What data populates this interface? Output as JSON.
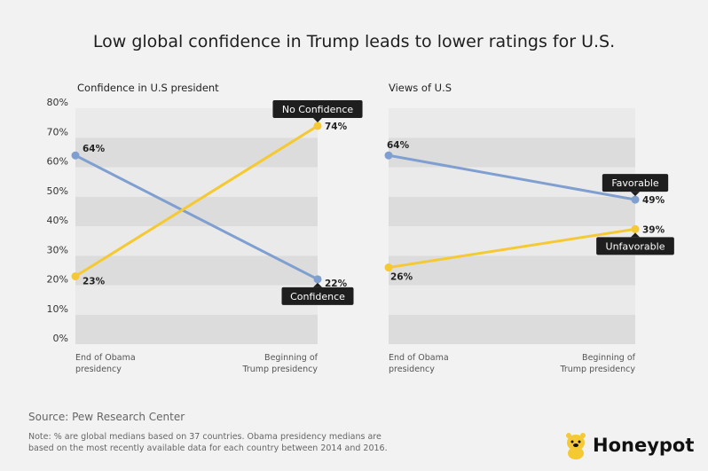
{
  "title": "Low global confidence in Trump leads to lower ratings for U.S.",
  "source": "Source: Pew Research Center",
  "note": "Note: % are global medians based on 37 countries. Obama presidency medians are based on the most recently available data for each country between 2014 and 2016.",
  "brand": "Honeypot",
  "colors": {
    "blue": "#7f9fd0",
    "yellow": "#f5c933",
    "label_bg": "#1e1e1e"
  },
  "chart_data": [
    {
      "type": "line",
      "title": "Confidence in U.S president",
      "categories": [
        "End of Obama presidency",
        "Beginning of Trump presidency"
      ],
      "category_lines": [
        [
          "End of Obama",
          "presidency"
        ],
        [
          "Beginning of",
          "Trump presidency"
        ]
      ],
      "ylim": [
        0,
        80
      ],
      "yticks": [
        "0%",
        "10%",
        "20%",
        "30%",
        "40%",
        "50%",
        "60%",
        "70%",
        "80%"
      ],
      "series": [
        {
          "name": "Confidence",
          "values": [
            64,
            22
          ],
          "value_labels": [
            "64%",
            "22%"
          ],
          "color": "#7f9fd0"
        },
        {
          "name": "No Confidence",
          "values": [
            23,
            74
          ],
          "value_labels": [
            "23%",
            "74%"
          ],
          "color": "#f5c933"
        }
      ],
      "grid": true
    },
    {
      "type": "line",
      "title": "Views of U.S",
      "categories": [
        "End of Obama presidency",
        "Beginning of Trump presidency"
      ],
      "category_lines": [
        [
          "End of Obama",
          "presidency"
        ],
        [
          "Beginning of",
          "Trump presidency"
        ]
      ],
      "ylim": [
        0,
        80
      ],
      "series": [
        {
          "name": "Favorable",
          "values": [
            64,
            49
          ],
          "value_labels": [
            "64%",
            "49%"
          ],
          "color": "#7f9fd0"
        },
        {
          "name": "Unfavorable",
          "values": [
            26,
            39
          ],
          "value_labels": [
            "26%",
            "39%"
          ],
          "color": "#f5c933"
        }
      ],
      "grid": true
    }
  ]
}
